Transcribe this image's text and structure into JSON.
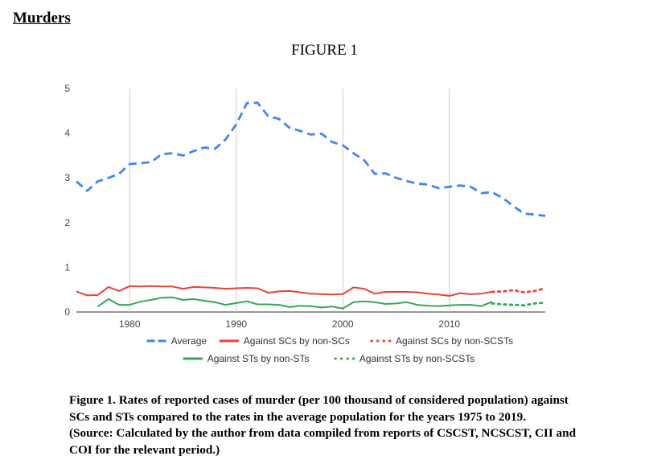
{
  "heading": "Murders",
  "figure_title": "FIGURE 1",
  "caption": {
    "line1": "Figure 1. Rates of reported cases of murder (per 100 thousand of considered population) against",
    "line2": "SCs and STs compared to the rates in the average population for the years 1975 to 2019.",
    "line3": "(Source: Calculated by the author from data compiled from reports of CSCST, NCSCST, CII and",
    "line4": "COI for the relevant period.)"
  },
  "chart_data": {
    "type": "line",
    "title": "",
    "xlabel": "",
    "ylabel": "",
    "xlim": [
      1975,
      2019
    ],
    "ylim": [
      0,
      5
    ],
    "xticks": [
      1980,
      1990,
      2000,
      2010
    ],
    "yticks": [
      0,
      1,
      2,
      3,
      4,
      5
    ],
    "grid": "vertical gridlines at x ticks",
    "legend_position": "bottom",
    "series": [
      {
        "name": "Average",
        "color": "#4285f4",
        "style": "dashed",
        "x": [
          1975,
          1976,
          1977,
          1978,
          1979,
          1980,
          1981,
          1982,
          1983,
          1984,
          1985,
          1986,
          1987,
          1988,
          1989,
          1990,
          1991,
          1992,
          1993,
          1994,
          1995,
          1996,
          1997,
          1998,
          1999,
          2000,
          2001,
          2002,
          2003,
          2004,
          2005,
          2006,
          2007,
          2008,
          2009,
          2010,
          2011,
          2012,
          2013,
          2014,
          2015,
          2016,
          2017,
          2018,
          2019
        ],
        "values": [
          2.92,
          2.71,
          2.92,
          3.0,
          3.09,
          3.31,
          3.33,
          3.35,
          3.53,
          3.55,
          3.5,
          3.6,
          3.68,
          3.65,
          3.86,
          4.2,
          4.67,
          4.68,
          4.38,
          4.32,
          4.12,
          4.05,
          3.97,
          3.99,
          3.8,
          3.73,
          3.55,
          3.4,
          3.09,
          3.1,
          3.0,
          2.93,
          2.87,
          2.85,
          2.77,
          2.8,
          2.83,
          2.8,
          2.66,
          2.68,
          2.55,
          2.37,
          2.2,
          2.18,
          2.15
        ]
      },
      {
        "name": "Against SCs by non-SCs",
        "color": "#ea4335",
        "style": "solid",
        "x": [
          1975,
          1976,
          1977,
          1978,
          1979,
          1980,
          1981,
          1982,
          1983,
          1984,
          1985,
          1986,
          1987,
          1988,
          1989,
          1990,
          1991,
          1992,
          1993,
          1994,
          1995,
          1996,
          1997,
          1998,
          1999,
          2000,
          2001,
          2002,
          2003,
          2004,
          2005,
          2006,
          2007,
          2008,
          2009,
          2010,
          2011,
          2012,
          2013,
          2014
        ],
        "values": [
          0.46,
          0.37,
          0.38,
          0.56,
          0.47,
          0.58,
          0.57,
          0.58,
          0.57,
          0.57,
          0.52,
          0.56,
          0.55,
          0.54,
          0.52,
          0.53,
          0.54,
          0.53,
          0.43,
          0.46,
          0.47,
          0.44,
          0.41,
          0.4,
          0.39,
          0.4,
          0.55,
          0.52,
          0.41,
          0.45,
          0.45,
          0.45,
          0.44,
          0.41,
          0.39,
          0.36,
          0.42,
          0.4,
          0.41,
          0.45
        ]
      },
      {
        "name": "Against SCs by non-SCSTs",
        "color": "#ea4335",
        "style": "dotted",
        "x": [
          2014,
          2015,
          2016,
          2017,
          2018,
          2019
        ],
        "values": [
          0.45,
          0.46,
          0.49,
          0.44,
          0.47,
          0.53
        ]
      },
      {
        "name": "Against STs by non-STs",
        "color": "#34a853",
        "style": "solid",
        "x": [
          1977,
          1978,
          1979,
          1980,
          1981,
          1982,
          1983,
          1984,
          1985,
          1986,
          1987,
          1988,
          1989,
          1990,
          1991,
          1992,
          1993,
          1994,
          1995,
          1996,
          1997,
          1998,
          1999,
          2000,
          2001,
          2002,
          2003,
          2004,
          2005,
          2006,
          2007,
          2008,
          2009,
          2010,
          2011,
          2012,
          2013,
          2014
        ],
        "values": [
          0.12,
          0.29,
          0.16,
          0.16,
          0.23,
          0.27,
          0.32,
          0.33,
          0.27,
          0.29,
          0.25,
          0.22,
          0.16,
          0.2,
          0.24,
          0.17,
          0.17,
          0.16,
          0.11,
          0.14,
          0.13,
          0.1,
          0.12,
          0.08,
          0.22,
          0.24,
          0.22,
          0.18,
          0.19,
          0.22,
          0.16,
          0.14,
          0.13,
          0.15,
          0.16,
          0.16,
          0.13,
          0.23
        ]
      },
      {
        "name": "Against STs by non-SCSTs",
        "color": "#34a853",
        "style": "dotted",
        "x": [
          2014,
          2015,
          2016,
          2017,
          2018,
          2019
        ],
        "values": [
          0.19,
          0.17,
          0.16,
          0.15,
          0.19,
          0.21
        ]
      }
    ]
  }
}
